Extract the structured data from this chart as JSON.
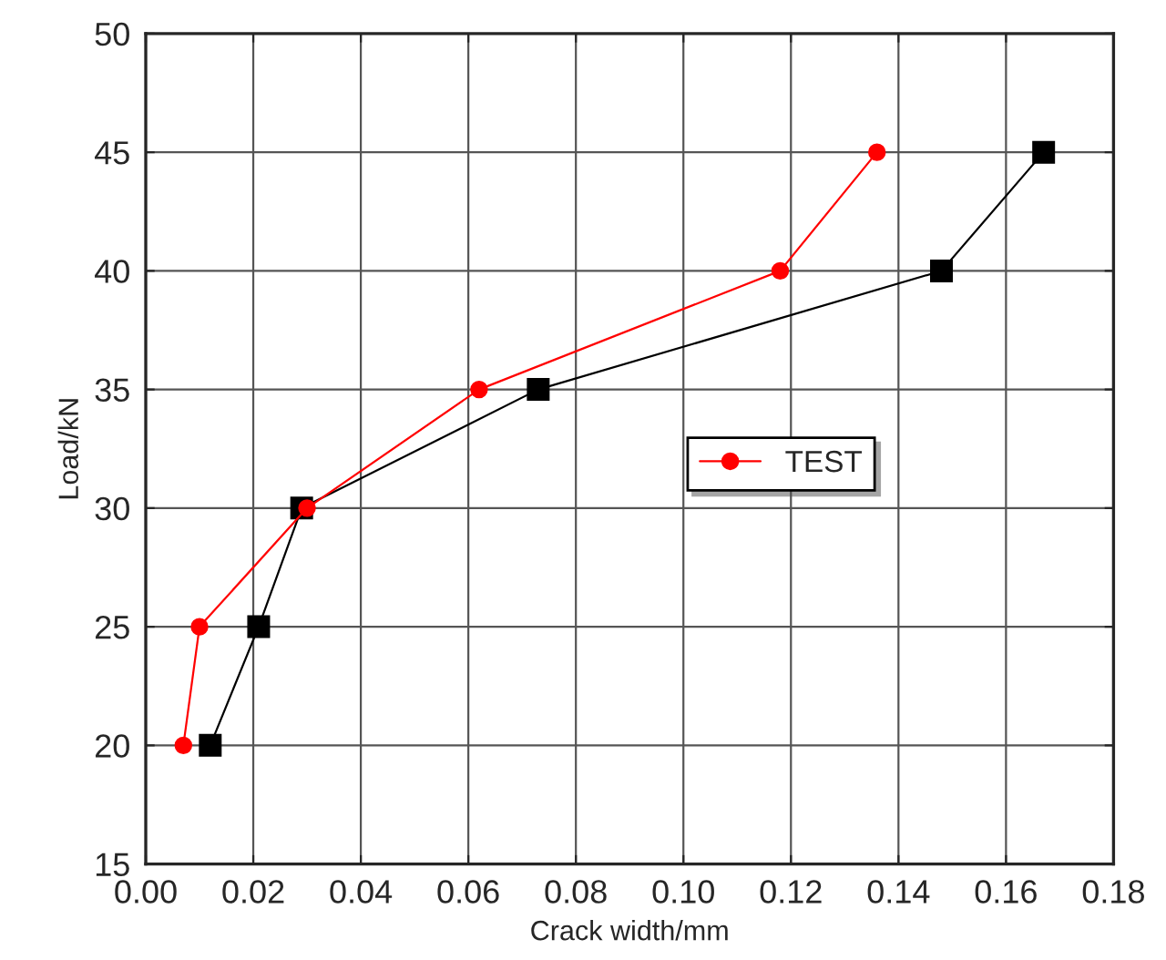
{
  "chart_data": {
    "type": "line",
    "xlabel": "Crack width/mm",
    "ylabel": "Load/kN",
    "series": [
      {
        "color": "#000000",
        "marker": "square",
        "x": [
          0.012,
          0.021,
          0.029,
          0.073,
          0.148,
          0.167
        ],
        "values": [
          20,
          25,
          30,
          35,
          40,
          45
        ]
      },
      {
        "name": "TEST",
        "color": "#ff0000",
        "marker": "circle",
        "x": [
          0.007,
          0.01,
          0.03,
          0.062,
          0.118,
          0.136
        ],
        "values": [
          20,
          25,
          30,
          35,
          40,
          45
        ]
      }
    ],
    "xlim": [
      0.0,
      0.18
    ],
    "xticks": [
      {
        "value": 0,
        "label": "0.00"
      },
      {
        "value": 0.02,
        "label": "0.02"
      },
      {
        "value": 0.04,
        "label": "0.04"
      },
      {
        "value": 0.06,
        "label": "0.06"
      },
      {
        "value": 0.08,
        "label": "0.08"
      },
      {
        "value": 0.1,
        "label": "0.10"
      },
      {
        "value": 0.12,
        "label": "0.12"
      },
      {
        "value": 0.14,
        "label": "0.14"
      },
      {
        "value": 0.16,
        "label": "0.16"
      },
      {
        "value": 0.18,
        "label": "0.18"
      }
    ],
    "ylim": [
      15,
      50
    ],
    "yticks": [
      15,
      20,
      25,
      30,
      35,
      40,
      45,
      50
    ],
    "grid": true,
    "legend": "right",
    "line_style": "solid"
  }
}
